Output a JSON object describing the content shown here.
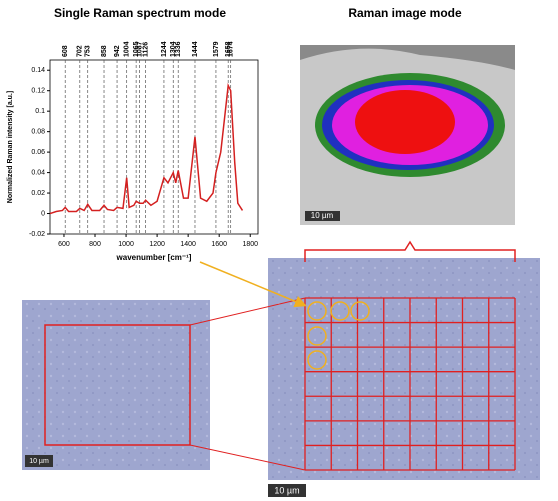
{
  "headings": [
    "Single Raman spectrum mode",
    "Raman image mode"
  ],
  "chart_data": {
    "type": "line",
    "ylabel": "Normalized Raman intensity [a.u.]",
    "xlabel": "wavenumber [cm⁻¹]",
    "x": [
      510,
      550,
      590,
      608,
      630,
      680,
      702,
      730,
      753,
      780,
      830,
      858,
      880,
      920,
      942,
      980,
      1004,
      1020,
      1050,
      1065,
      1087,
      1110,
      1126,
      1160,
      1200,
      1244,
      1270,
      1304,
      1320,
      1336,
      1370,
      1400,
      1444,
      1480,
      1520,
      1560,
      1579,
      1610,
      1658,
      1674,
      1700,
      1720,
      1750
    ],
    "series": [
      {
        "color": "#d42020",
        "values": [
          0.0,
          0.002,
          0.003,
          0.006,
          0.002,
          0.002,
          0.005,
          0.003,
          0.009,
          0.003,
          0.003,
          0.008,
          0.004,
          0.003,
          0.006,
          0.005,
          0.035,
          0.006,
          0.008,
          0.012,
          0.01,
          0.01,
          0.013,
          0.008,
          0.012,
          0.035,
          0.03,
          0.04,
          0.03,
          0.042,
          0.015,
          0.015,
          0.075,
          0.015,
          0.012,
          0.02,
          0.04,
          0.06,
          0.125,
          0.12,
          0.05,
          0.01,
          0.003
        ]
      }
    ],
    "peaks": [
      608,
      702,
      753,
      858,
      942,
      1004,
      1065,
      1087,
      1126,
      1244,
      1304,
      1336,
      1444,
      1579,
      1658,
      1674
    ],
    "xlim": [
      510,
      1850
    ],
    "ylim": [
      -0.02,
      0.15
    ],
    "xticks": [
      600,
      800,
      1000,
      1200,
      1400,
      1600,
      1800
    ],
    "yticks": [
      -0.02,
      0,
      0.02,
      0.04,
      0.06,
      0.08,
      0.1,
      0.12,
      0.14
    ]
  },
  "scale_bars": [
    "10 µm",
    "10 µm",
    "10 µm"
  ]
}
